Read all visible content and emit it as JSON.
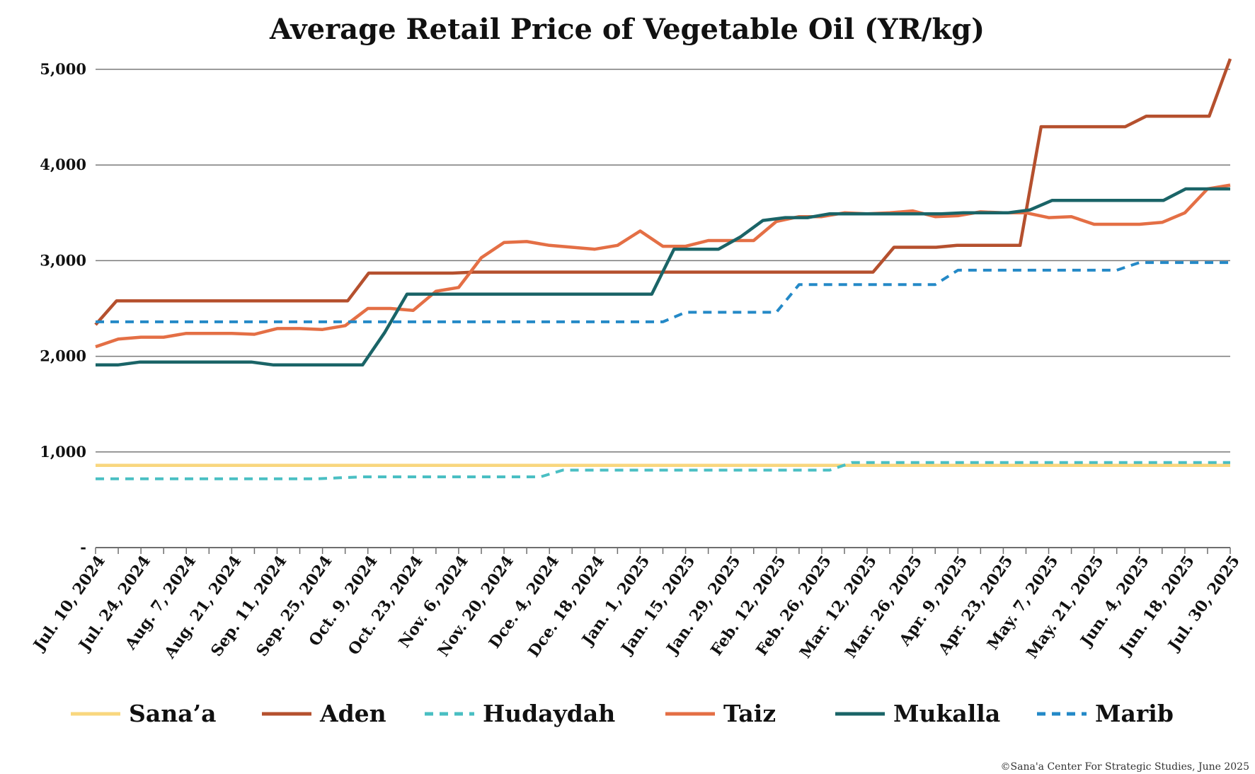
{
  "chart_data": {
    "type": "line",
    "title": "Average Retail Price of Vegetable Oil (YR/kg)",
    "credit": "©Sana'a Center For Strategic Studies, June 2025",
    "ylim": [
      0,
      5000
    ],
    "yticks": [
      {
        "value": 0,
        "label": "-"
      },
      {
        "value": 1000,
        "label": "1,000"
      },
      {
        "value": 2000,
        "label": "2,000"
      },
      {
        "value": 3000,
        "label": "3,000"
      },
      {
        "value": 4000,
        "label": "4,000"
      },
      {
        "value": 5000,
        "label": "5,000"
      }
    ],
    "grid": "horizontal",
    "legend_position": "bottom",
    "x_tick_labels": [
      "Jul. 10, 2024",
      "Jul. 24, 2024",
      "Aug. 7, 2024",
      "Aug. 21, 2024",
      "Sep. 11, 2024",
      "Sep. 25, 2024",
      "Oct. 9, 2024",
      "Oct. 23, 2024",
      "Nov. 6, 2024",
      "Nov. 20, 2024",
      "Dce. 4, 2024",
      "Dce. 18, 2024",
      "Jan. 1, 2025",
      "Jan. 15, 2025",
      "Jan. 29, 2025",
      "Feb. 12, 2025",
      "Feb. 26, 2025",
      "Mar. 12, 2025",
      "Mar. 26, 2025",
      "Apr. 9, 2025",
      "Apr. 23, 2025",
      "May. 7, 2025",
      "May. 21, 2025",
      "Jun. 4, 2025",
      "Jun. 18, 2025",
      "Jul. 30, 2025"
    ],
    "series": [
      {
        "name": "Sana’a",
        "color": "#F9D77E",
        "dashed": false,
        "values": [
          860,
          860,
          860,
          860,
          860,
          860,
          860,
          860,
          860,
          860,
          860,
          860,
          860,
          860,
          860,
          860,
          860,
          860,
          860,
          860,
          860,
          860,
          860,
          860,
          860,
          860,
          860,
          860,
          860,
          860,
          860,
          860,
          860,
          860,
          860,
          860,
          860,
          860,
          860,
          860,
          860,
          860,
          860,
          860,
          860,
          860,
          860,
          860,
          860,
          860,
          860,
          860
        ]
      },
      {
        "name": "Aden",
        "color": "#B5502E",
        "dashed": false,
        "values": [
          2330,
          2580,
          2580,
          2580,
          2580,
          2580,
          2580,
          2580,
          2580,
          2580,
          2580,
          2580,
          2580,
          2870,
          2870,
          2870,
          2870,
          2870,
          2880,
          2880,
          2880,
          2880,
          2880,
          2880,
          2880,
          2880,
          2880,
          2880,
          2880,
          2880,
          2880,
          2880,
          2880,
          2880,
          2880,
          2880,
          2880,
          2880,
          3140,
          3140,
          3140,
          3160,
          3160,
          3160,
          3160,
          4400,
          4400,
          4400,
          4400,
          4400,
          4510,
          4510,
          4510,
          4510,
          5110
        ]
      },
      {
        "name": "Hudaydah",
        "color": "#4ABFC3",
        "dashed": true,
        "values": [
          720,
          720,
          720,
          720,
          720,
          720,
          720,
          720,
          720,
          720,
          720,
          730,
          740,
          740,
          740,
          740,
          740,
          740,
          740,
          740,
          740,
          810,
          810,
          810,
          810,
          810,
          810,
          810,
          810,
          810,
          810,
          810,
          810,
          810,
          890,
          890,
          890,
          890,
          890,
          890,
          890,
          890,
          890,
          890,
          890,
          890,
          890,
          890,
          890,
          890,
          890,
          890
        ]
      },
      {
        "name": "Taiz",
        "color": "#E46F45",
        "dashed": false,
        "values": [
          2100,
          2180,
          2200,
          2200,
          2240,
          2240,
          2240,
          2230,
          2290,
          2290,
          2280,
          2320,
          2500,
          2500,
          2480,
          2680,
          2720,
          3030,
          3190,
          3200,
          3160,
          3140,
          3120,
          3160,
          3310,
          3150,
          3150,
          3210,
          3210,
          3210,
          3410,
          3460,
          3460,
          3500,
          3490,
          3500,
          3520,
          3460,
          3470,
          3510,
          3500,
          3500,
          3450,
          3460,
          3380,
          3380,
          3380,
          3400,
          3500,
          3750,
          3790
        ]
      },
      {
        "name": "Mukalla",
        "color": "#1A6467",
        "dashed": false,
        "values": [
          1910,
          1910,
          1940,
          1940,
          1940,
          1940,
          1940,
          1940,
          1910,
          1910,
          1910,
          1910,
          1910,
          2250,
          2650,
          2650,
          2650,
          2650,
          2650,
          2650,
          2650,
          2650,
          2650,
          2650,
          2650,
          2650,
          3120,
          3120,
          3120,
          3250,
          3420,
          3450,
          3450,
          3490,
          3490,
          3490,
          3490,
          3490,
          3490,
          3500,
          3500,
          3500,
          3530,
          3630,
          3630,
          3630,
          3630,
          3630,
          3630,
          3750,
          3750,
          3750
        ]
      },
      {
        "name": "Marib",
        "color": "#2489C7",
        "dashed": true,
        "values": [
          2360,
          2360,
          2360,
          2360,
          2360,
          2360,
          2360,
          2360,
          2360,
          2360,
          2360,
          2360,
          2360,
          2360,
          2360,
          2360,
          2360,
          2360,
          2360,
          2360,
          2360,
          2360,
          2360,
          2360,
          2360,
          2360,
          2460,
          2460,
          2460,
          2460,
          2460,
          2750,
          2750,
          2750,
          2750,
          2750,
          2750,
          2750,
          2900,
          2900,
          2900,
          2900,
          2900,
          2900,
          2900,
          2900,
          2980,
          2980,
          2980,
          2980,
          2980
        ]
      }
    ]
  }
}
